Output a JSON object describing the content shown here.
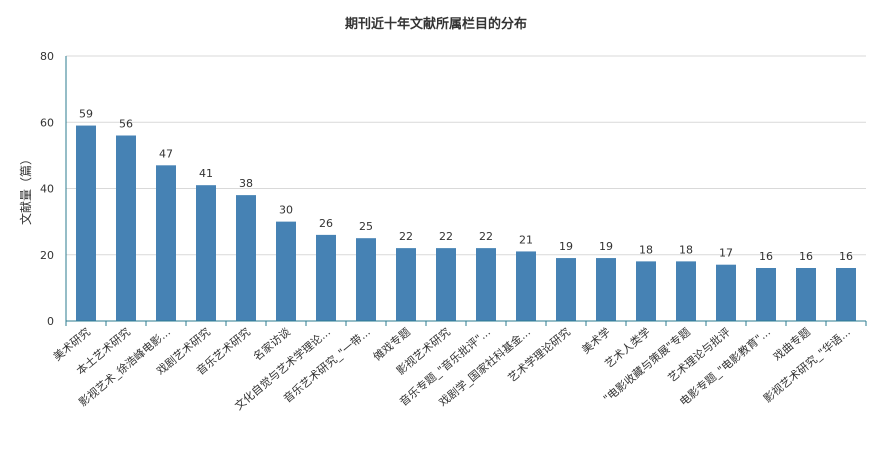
{
  "chart_data": {
    "type": "bar",
    "title": "期刊近十年文献所属栏目的分布",
    "xlabel": "",
    "ylabel": "文献量（篇）",
    "ylim": [
      0,
      80
    ],
    "yticks": [
      0,
      20,
      40,
      60,
      80
    ],
    "grid": true,
    "legend": "none",
    "colors": {
      "bar": "#4682b4",
      "axis": "#2b7b8f",
      "grid": "#d9d9d9"
    },
    "categories": [
      "美术研究",
      "本土艺术研究",
      "影视艺术_徐浩峰电影...",
      "戏剧艺术研究",
      "音乐艺术研究",
      "名家访谈",
      "文化自觉与艺术学理论...",
      "音乐艺术研究_\"一带...",
      "傩戏专题",
      "影视艺术研究",
      "音乐专题_\"音乐批评\"...",
      "戏剧学_国家社科基金...",
      "艺术学理论研究",
      "美术学",
      "艺术人类学",
      "\"电影收藏与策展\"专题",
      "艺术理论与批评",
      "电影专题_\"电影教育\"...",
      "戏曲专题",
      "影视艺术研究_\"华语..."
    ],
    "values": [
      59,
      56,
      47,
      41,
      38,
      30,
      26,
      25,
      22,
      22,
      22,
      21,
      19,
      19,
      18,
      18,
      17,
      16,
      16,
      16
    ]
  }
}
